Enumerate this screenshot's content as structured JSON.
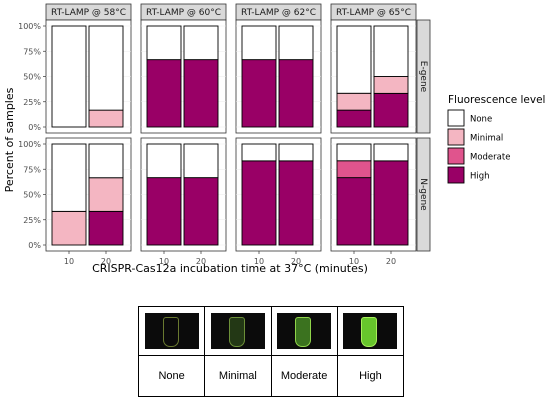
{
  "chart_data": {
    "type": "bar",
    "subtype": "stacked-100-faceted",
    "xlabel": "CRISPR-Cas12a incubation time at 37°C (minutes)",
    "ylabel": "Percent of samples",
    "x_categories": [
      "10",
      "20"
    ],
    "y_ticks": [
      "0%",
      "25%",
      "50%",
      "75%",
      "100%"
    ],
    "ylim": [
      0,
      100
    ],
    "column_facets": [
      "RT-LAMP @ 58°C",
      "RT-LAMP @ 60°C",
      "RT-LAMP @ 62°C",
      "RT-LAMP @ 65°C"
    ],
    "row_facets": [
      "E-gene",
      "N-gene"
    ],
    "legend": {
      "title": "Fluorescence level",
      "position": "right",
      "entries": [
        "None",
        "Minimal",
        "Moderate",
        "High"
      ]
    },
    "level_order": [
      "High",
      "Moderate",
      "Minimal",
      "None"
    ],
    "colors": {
      "None": "#ffffff",
      "Minimal": "#f4b6c2",
      "Moderate": "#e0548d",
      "High": "#990066"
    },
    "panels": [
      {
        "row": "E-gene",
        "col": "RT-LAMP @ 58°C",
        "bars": [
          {
            "x": "10",
            "High": 0,
            "Moderate": 0,
            "Minimal": 0,
            "None": 100
          },
          {
            "x": "20",
            "High": 0,
            "Moderate": 0,
            "Minimal": 16.7,
            "None": 83.3
          }
        ]
      },
      {
        "row": "E-gene",
        "col": "RT-LAMP @ 60°C",
        "bars": [
          {
            "x": "10",
            "High": 66.7,
            "Moderate": 0,
            "Minimal": 0,
            "None": 33.3
          },
          {
            "x": "20",
            "High": 66.7,
            "Moderate": 0,
            "Minimal": 0,
            "None": 33.3
          }
        ]
      },
      {
        "row": "E-gene",
        "col": "RT-LAMP @ 62°C",
        "bars": [
          {
            "x": "10",
            "High": 66.7,
            "Moderate": 0,
            "Minimal": 0,
            "None": 33.3
          },
          {
            "x": "20",
            "High": 66.7,
            "Moderate": 0,
            "Minimal": 0,
            "None": 33.3
          }
        ]
      },
      {
        "row": "E-gene",
        "col": "RT-LAMP @ 65°C",
        "bars": [
          {
            "x": "10",
            "High": 16.7,
            "Moderate": 0,
            "Minimal": 16.7,
            "None": 66.6
          },
          {
            "x": "20",
            "High": 33.3,
            "Moderate": 0,
            "Minimal": 16.7,
            "None": 50
          }
        ]
      },
      {
        "row": "N-gene",
        "col": "RT-LAMP @ 58°C",
        "bars": [
          {
            "x": "10",
            "High": 0,
            "Moderate": 0,
            "Minimal": 33.3,
            "None": 66.7
          },
          {
            "x": "20",
            "High": 33.3,
            "Moderate": 0,
            "Minimal": 33.3,
            "None": 33.4
          }
        ]
      },
      {
        "row": "N-gene",
        "col": "RT-LAMP @ 60°C",
        "bars": [
          {
            "x": "10",
            "High": 66.7,
            "Moderate": 0,
            "Minimal": 0,
            "None": 33.3
          },
          {
            "x": "20",
            "High": 66.7,
            "Moderate": 0,
            "Minimal": 0,
            "None": 33.3
          }
        ]
      },
      {
        "row": "N-gene",
        "col": "RT-LAMP @ 62°C",
        "bars": [
          {
            "x": "10",
            "High": 83.3,
            "Moderate": 0,
            "Minimal": 0,
            "None": 16.7
          },
          {
            "x": "20",
            "High": 83.3,
            "Moderate": 0,
            "Minimal": 0,
            "None": 16.7
          }
        ]
      },
      {
        "row": "N-gene",
        "col": "RT-LAMP @ 65°C",
        "bars": [
          {
            "x": "10",
            "High": 66.7,
            "Moderate": 16.7,
            "Minimal": 0,
            "None": 16.6
          },
          {
            "x": "20",
            "High": 83.3,
            "Moderate": 0,
            "Minimal": 0,
            "None": 16.7
          }
        ]
      }
    ]
  },
  "key_table": {
    "labels": [
      "None",
      "Minimal",
      "Moderate",
      "High"
    ]
  }
}
